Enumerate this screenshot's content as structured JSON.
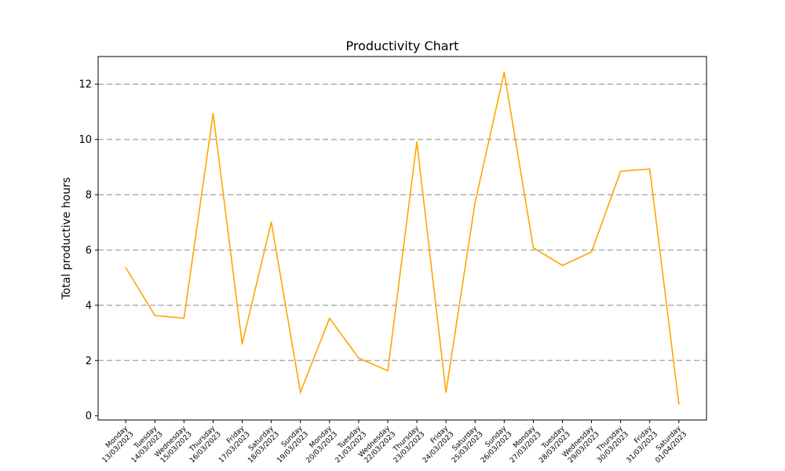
{
  "chart_data": {
    "type": "line",
    "title": "Productivity Chart",
    "xlabel": "",
    "ylabel": "Total productive hours",
    "ylim": [
      -0.15,
      13
    ],
    "yticks": [
      0,
      2,
      4,
      6,
      8,
      10,
      12
    ],
    "grid": "horizontal dashed",
    "legend": "none",
    "line_color": "#ffa500",
    "categories": [
      {
        "day": "Monday",
        "date": "13/03/2023"
      },
      {
        "day": "Tuesday",
        "date": "14/03/2023"
      },
      {
        "day": "Wednesday",
        "date": "15/03/2023"
      },
      {
        "day": "Thursday",
        "date": "16/03/2023"
      },
      {
        "day": "Friday",
        "date": "17/03/2023"
      },
      {
        "day": "Saturday",
        "date": "18/03/2023"
      },
      {
        "day": "Sunday",
        "date": "19/03/2023"
      },
      {
        "day": "Monday",
        "date": "20/03/2023"
      },
      {
        "day": "Tuesday",
        "date": "21/03/2023"
      },
      {
        "day": "Wednesday",
        "date": "22/03/2023"
      },
      {
        "day": "Thursday",
        "date": "23/03/2023"
      },
      {
        "day": "Friday",
        "date": "24/03/2023"
      },
      {
        "day": "Saturday",
        "date": "25/03/2023"
      },
      {
        "day": "Sunday",
        "date": "26/03/2023"
      },
      {
        "day": "Monday",
        "date": "27/03/2023"
      },
      {
        "day": "Tuesday",
        "date": "28/03/2023"
      },
      {
        "day": "Wednesday",
        "date": "29/03/2023"
      },
      {
        "day": "Thursday",
        "date": "30/03/2023"
      },
      {
        "day": "Friday",
        "date": "31/03/2023"
      },
      {
        "day": "Saturday",
        "date": "01/04/2023"
      }
    ],
    "values": [
      5.36,
      3.63,
      3.53,
      10.94,
      2.6,
      7.01,
      0.85,
      3.53,
      2.09,
      1.63,
      9.91,
      0.85,
      7.72,
      12.43,
      6.08,
      5.44,
      5.93,
      8.85,
      8.93,
      0.43
    ]
  }
}
